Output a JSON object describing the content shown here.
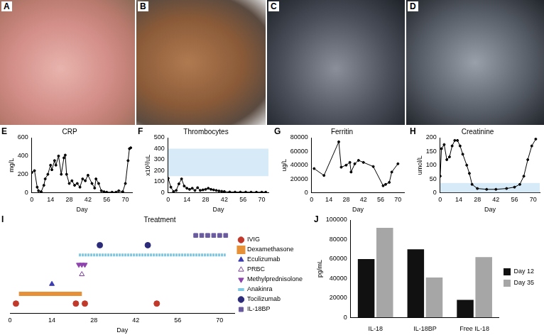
{
  "images": [
    {
      "panel": "A"
    },
    {
      "panel": "B"
    },
    {
      "panel": "C"
    },
    {
      "panel": "D"
    }
  ],
  "chart_data": [
    {
      "panel": "E",
      "type": "line",
      "title": "CRP",
      "y_label": "mg/L",
      "x_label": "Day",
      "color": "#000000",
      "marker": "circle",
      "grid": false,
      "x": [
        0,
        2,
        4,
        5,
        7,
        9,
        10,
        12,
        14,
        15,
        17,
        18,
        20,
        22,
        24,
        25,
        26,
        28,
        30,
        32,
        34,
        36,
        38,
        40,
        42,
        45,
        47,
        48,
        50,
        52,
        54,
        56,
        60,
        63,
        65,
        68,
        70,
        72,
        73,
        74
      ],
      "values": [
        220,
        240,
        60,
        20,
        10,
        80,
        150,
        200,
        300,
        250,
        350,
        300,
        400,
        200,
        380,
        410,
        200,
        100,
        130,
        80,
        100,
        60,
        150,
        130,
        190,
        100,
        50,
        150,
        100,
        20,
        10,
        5,
        5,
        5,
        20,
        10,
        100,
        350,
        480,
        490
      ],
      "xlim": [
        0,
        75
      ],
      "xticks": [
        0,
        14,
        28,
        42,
        56,
        70
      ],
      "ylim": [
        0,
        600
      ],
      "yticks": [
        0,
        200,
        400,
        600
      ]
    },
    {
      "panel": "F",
      "type": "line",
      "title": "Thrombocytes",
      "y_label": "x10³/uL",
      "x_label": "Day",
      "color": "#000000",
      "marker": "circle",
      "grid": false,
      "reference_range": [
        150,
        400
      ],
      "x": [
        0,
        2,
        4,
        6,
        8,
        10,
        12,
        14,
        16,
        18,
        20,
        22,
        24,
        26,
        28,
        30,
        32,
        34,
        36,
        38,
        40,
        42,
        46,
        50,
        54,
        58,
        62,
        66,
        70,
        73
      ],
      "values": [
        130,
        50,
        10,
        20,
        80,
        125,
        60,
        40,
        30,
        40,
        20,
        45,
        20,
        25,
        30,
        40,
        30,
        25,
        20,
        15,
        12,
        10,
        6,
        5,
        5,
        5,
        4,
        4,
        4,
        4
      ],
      "xlim": [
        0,
        75
      ],
      "xticks": [
        0,
        14,
        28,
        42,
        56,
        70
      ],
      "ylim": [
        0,
        500
      ],
      "yticks": [
        0,
        100,
        200,
        300,
        400,
        500
      ]
    },
    {
      "panel": "G",
      "type": "line",
      "title": "Ferritin",
      "y_label": "ug/L",
      "x_label": "Day",
      "color": "#000000",
      "marker": "circle",
      "grid": false,
      "x": [
        2,
        10,
        22,
        24,
        28,
        31,
        32,
        35,
        38,
        42,
        50,
        58,
        60,
        63,
        65,
        70
      ],
      "values": [
        35000,
        25000,
        74000,
        37000,
        40000,
        44000,
        30000,
        42000,
        47000,
        44000,
        38000,
        10000,
        12000,
        15000,
        30000,
        42000
      ],
      "xlim": [
        0,
        75
      ],
      "xticks": [
        0,
        14,
        28,
        42,
        56,
        70
      ],
      "ylim": [
        0,
        80000
      ],
      "yticks": [
        0,
        20000,
        40000,
        60000,
        80000
      ]
    },
    {
      "panel": "H",
      "type": "line",
      "title": "Creatinine",
      "y_label": "umol/L",
      "x_label": "Day",
      "color": "#000000",
      "marker": "circle",
      "grid": false,
      "reference_range": [
        0,
        35
      ],
      "x": [
        0,
        1,
        3,
        5,
        7,
        9,
        11,
        13,
        15,
        17,
        20,
        22,
        24,
        28,
        35,
        42,
        50,
        56,
        60,
        63,
        66,
        69,
        72
      ],
      "values": [
        60,
        160,
        175,
        120,
        130,
        170,
        190,
        190,
        170,
        140,
        100,
        70,
        30,
        15,
        12,
        12,
        15,
        20,
        30,
        60,
        120,
        170,
        195
      ],
      "xlim": [
        0,
        75
      ],
      "xticks": [
        0,
        14,
        28,
        42,
        56,
        70
      ],
      "ylim": [
        0,
        200
      ],
      "yticks": [
        0,
        50,
        100,
        150,
        200
      ]
    },
    {
      "panel": "I",
      "type": "timeline",
      "title": "Treatment",
      "x_label": "Day",
      "tick_labels": "x",
      "legend": "right",
      "grid": false,
      "xlim": [
        0,
        75
      ],
      "xticks": [
        0,
        14,
        28,
        42,
        56,
        70
      ],
      "series": [
        {
          "name": "IVIG",
          "color": "#c0392b",
          "marker": "circle",
          "days": [
            2,
            22,
            25,
            49
          ]
        },
        {
          "name": "Dexamethasone",
          "color": "#e69138",
          "marker": "bar",
          "days": [
            3,
            24
          ]
        },
        {
          "name": "Eculizumab",
          "color": "#3b3bb3",
          "marker": "triangle",
          "days": [
            14
          ]
        },
        {
          "name": "PRBC",
          "color": "#7a3b9c",
          "marker": "open_triangle",
          "days": [
            24
          ]
        },
        {
          "name": "Methylprednisolone",
          "color": "#8e44ad",
          "marker": "down_triangle",
          "days": [
            23,
            24,
            25
          ]
        },
        {
          "name": "Anakinra",
          "color": "#7ec8e3",
          "marker": "line",
          "days": [
            23,
            72
          ]
        },
        {
          "name": "Tocilizumab",
          "color": "#2b2b7a",
          "marker": "circle",
          "days": [
            30,
            46
          ]
        },
        {
          "name": "IL-18BP",
          "color": "#6a5aa0",
          "marker": "square",
          "days": [
            62,
            64,
            66,
            68,
            70,
            72
          ]
        }
      ]
    },
    {
      "panel": "J",
      "type": "bar",
      "y_label": "pg/mL",
      "legend": "right",
      "grid": false,
      "categories": [
        "IL-18",
        "IL-18BP",
        "Free IL-18"
      ],
      "series": [
        {
          "name": "Day 12",
          "color": "#111111",
          "values": [
            60000,
            70000,
            18000
          ]
        },
        {
          "name": "Day 35",
          "color": "#a6a6a6",
          "values": [
            92000,
            41000,
            62000
          ]
        }
      ],
      "ylim": [
        0,
        100000
      ],
      "yticks": [
        0,
        20000,
        40000,
        60000,
        80000,
        100000
      ]
    }
  ]
}
